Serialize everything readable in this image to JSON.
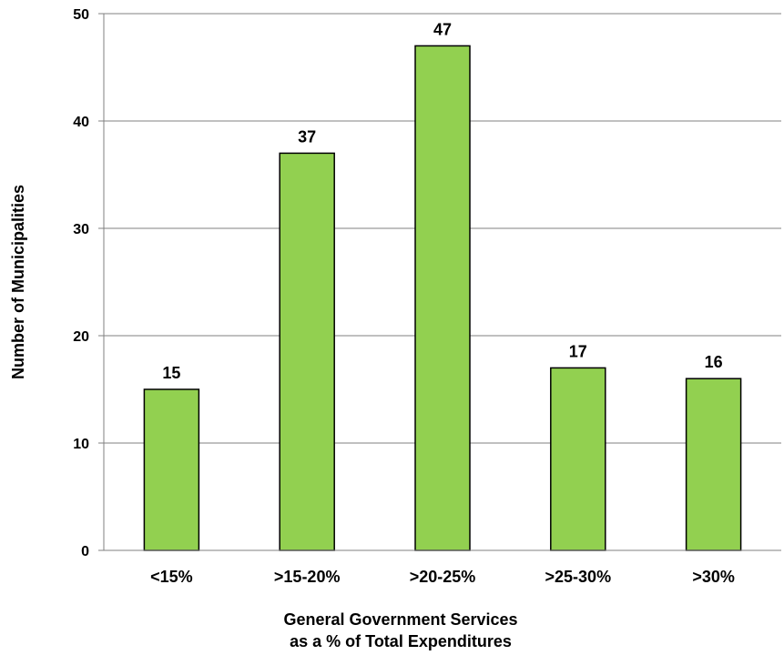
{
  "chart_data": {
    "type": "bar",
    "categories": [
      "<15%",
      ">15-20%",
      ">20-25%",
      ">25-30%",
      ">30%"
    ],
    "values": [
      15,
      37,
      47,
      17,
      16
    ],
    "data_labels": [
      "15",
      "37",
      "47",
      "17",
      "16"
    ],
    "ylabel": "Number of Municipalities",
    "xlabel_lines": [
      "General Government Services",
      "as a % of Total Expenditures"
    ],
    "ylim": [
      0,
      50
    ],
    "yticks": [
      0,
      10,
      20,
      30,
      40,
      50
    ],
    "ytick_labels": [
      "0",
      "10",
      "20",
      "30",
      "40",
      "50"
    ],
    "grid": true,
    "legend": "none",
    "bar_color": "#92D050",
    "bar_edge_color": "#000000",
    "grid_color": "#808080"
  }
}
